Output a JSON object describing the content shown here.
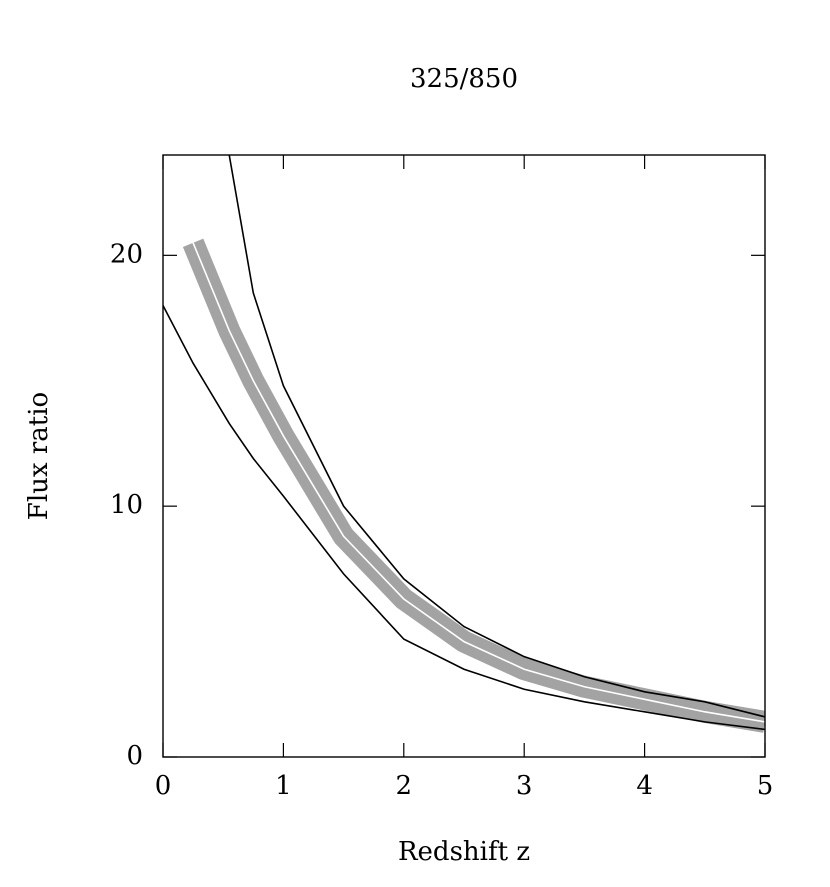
{
  "chart_data": {
    "type": "line",
    "title": "325/850",
    "x_label": "Redshift z",
    "y_label": "Flux ratio",
    "x": [
      0,
      0.25,
      0.55,
      0.75,
      1,
      1.5,
      2,
      2.5,
      3,
      3.5,
      4,
      4.5,
      5
    ],
    "series": [
      {
        "name": "upper",
        "color": "#000000",
        "values": [
          null,
          null,
          24,
          18.5,
          14.8,
          10,
          7.1,
          5.2,
          4.0,
          3.2,
          2.6,
          2.2,
          1.6
        ]
      },
      {
        "name": "median",
        "color": "#ffffff",
        "values": [
          null,
          20.5,
          17,
          15,
          12.8,
          8.8,
          6.3,
          4.6,
          3.5,
          2.8,
          2.3,
          1.8,
          1.4
        ]
      },
      {
        "name": "lower",
        "color": "#000000",
        "values": [
          18,
          15.7,
          13.3,
          11.9,
          10.4,
          7.3,
          4.7,
          3.5,
          2.7,
          2.2,
          1.8,
          1.4,
          1.1
        ]
      }
    ],
    "xlim": [
      0,
      5
    ],
    "xticks": [
      0,
      1,
      2,
      3,
      4,
      5
    ],
    "ylim": [
      0,
      24
    ],
    "yticks": [
      0,
      10,
      20
    ]
  }
}
